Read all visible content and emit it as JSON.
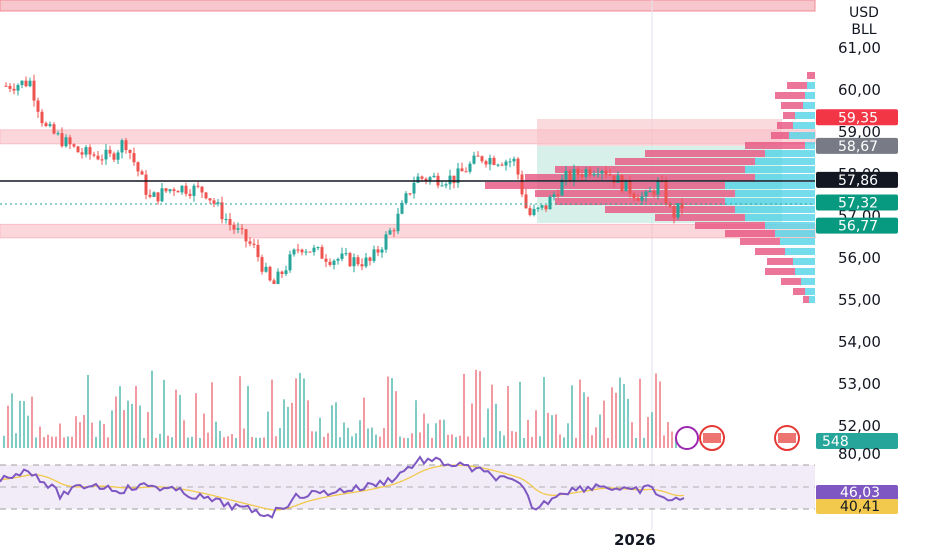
{
  "currency_top": "USD",
  "currency_bottom": "BLL",
  "x_axis_label": "2026",
  "colors": {
    "up": "#26a69a",
    "down": "#ef5350",
    "zone": "#f8b7bf",
    "zone_line": "#f48a96",
    "green_box": "#c9ece3",
    "rsi_line": "#7e57c2",
    "rsi_ma": "#f2c94c",
    "vp_pink": "#e75480",
    "vp_cyan": "#52d3e6"
  },
  "chart_data": [
    {
      "type": "candlestick",
      "title": "",
      "y_ticks": [
        "61,00",
        "60,00",
        "59,00",
        "58,00",
        "57,00",
        "56,00",
        "55,00",
        "54,00",
        "53,00",
        "52,00"
      ],
      "ylim": [
        51.5,
        61.5
      ],
      "current_price": 57.86,
      "price_tags": [
        {
          "label": "59,35",
          "value": 59.35,
          "color": "#f23645"
        },
        {
          "label": "58,67",
          "value": 58.67,
          "color": "#787b86"
        },
        {
          "label": "57,86",
          "value": 57.86,
          "color": "#131722"
        },
        {
          "label": "57,32",
          "value": 57.32,
          "color": "#089981"
        },
        {
          "label": "56,77",
          "value": 56.77,
          "color": "#089981"
        }
      ],
      "zones": [
        {
          "from": 58.72,
          "to": 59.05
        },
        {
          "from": 56.48,
          "to": 56.8
        }
      ],
      "volume_tag": "548"
    },
    {
      "type": "line",
      "title": "",
      "y_ticks": [
        "80,00"
      ],
      "ylim": [
        20,
        80
      ],
      "series": [
        {
          "label": "46,03",
          "color": "#7e57c2"
        },
        {
          "label": "40,41",
          "color": "#f2c94c"
        }
      ]
    }
  ]
}
